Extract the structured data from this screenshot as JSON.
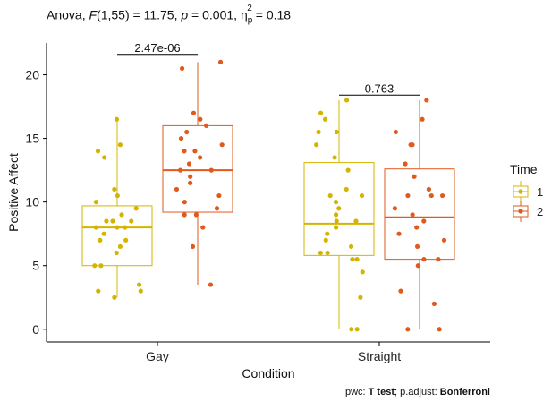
{
  "chart_data": {
    "type": "box",
    "title": {
      "test": "Anova",
      "stat_name": "F",
      "df": "(1,55)",
      "stat_value": "= 11.75",
      "p_label": "p",
      "p_value": "= 0.001",
      "effect_name": "η",
      "effect_sub": "p",
      "effect_sup": "2",
      "effect_value": "= 0.18"
    },
    "xlabel": "Condition",
    "ylabel": "Positive Affect",
    "ylim": [
      -1,
      22.5
    ],
    "yticks": [
      0,
      5,
      10,
      15,
      20
    ],
    "categories": [
      "Gay",
      "Straight"
    ],
    "legend": {
      "title": "Time",
      "position": "right",
      "entries": [
        {
          "label": "1",
          "color": "#d4b400"
        },
        {
          "label": "2",
          "color": "#e05a1e"
        }
      ]
    },
    "boxes": [
      {
        "category": "Gay",
        "time": "1",
        "color": "#d4b400",
        "whisker_low": 2.5,
        "q1": 5.0,
        "median": 8.0,
        "q3": 9.7,
        "whisker_high": 16.5,
        "points": [
          16.5,
          14.5,
          14.0,
          13.5,
          11.0,
          10.5,
          10.0,
          9.5,
          9.0,
          8.5,
          8.5,
          8.5,
          8.0,
          8.0,
          8.0,
          7.5,
          7.0,
          7.0,
          6.5,
          6.0,
          5.0,
          5.0,
          3.5,
          3.0,
          3.0,
          2.5
        ]
      },
      {
        "category": "Gay",
        "time": "2",
        "color": "#e05a1e",
        "whisker_low": 3.5,
        "q1": 9.2,
        "median": 12.5,
        "q3": 16.0,
        "whisker_high": 21.0,
        "points": [
          21.0,
          20.5,
          17.0,
          16.5,
          16.0,
          15.5,
          15.0,
          14.5,
          14.0,
          14.0,
          13.5,
          13.0,
          12.5,
          12.5,
          12.0,
          11.5,
          11.0,
          10.5,
          10.0,
          9.5,
          9.0,
          9.0,
          8.0,
          6.5,
          3.5
        ]
      },
      {
        "category": "Straight",
        "time": "1",
        "color": "#d4b400",
        "whisker_low": 0.0,
        "q1": 5.8,
        "median": 8.3,
        "q3": 13.1,
        "whisker_high": 18.0,
        "points": [
          18.0,
          17.0,
          16.5,
          15.5,
          15.5,
          14.5,
          13.5,
          12.5,
          11.0,
          10.5,
          10.5,
          10.0,
          9.5,
          9.0,
          8.5,
          8.5,
          8.0,
          7.5,
          7.0,
          6.5,
          6.0,
          6.0,
          5.5,
          5.5,
          4.5,
          2.5,
          0.0,
          0.0
        ]
      },
      {
        "category": "Straight",
        "time": "2",
        "color": "#e05a1e",
        "whisker_low": 0.0,
        "q1": 5.5,
        "median": 8.8,
        "q3": 12.6,
        "whisker_high": 18.0,
        "points": [
          18.0,
          16.5,
          15.5,
          14.5,
          14.5,
          13.0,
          12.0,
          11.0,
          10.5,
          10.5,
          10.5,
          9.5,
          9.0,
          8.5,
          8.0,
          7.5,
          7.0,
          6.5,
          5.5,
          5.5,
          5.0,
          3.0,
          2.0,
          0.0,
          0.0
        ]
      }
    ],
    "comparisons": [
      {
        "category": "Gay",
        "y": 21.6,
        "label": "2.47e-06"
      },
      {
        "category": "Straight",
        "y": 18.4,
        "label": "0.763"
      }
    ],
    "caption": {
      "pwc_prefix": "pwc: ",
      "pwc_method": "T test",
      "adjust_prefix": "; p.adjust: ",
      "adjust_method": "Bonferroni"
    }
  }
}
